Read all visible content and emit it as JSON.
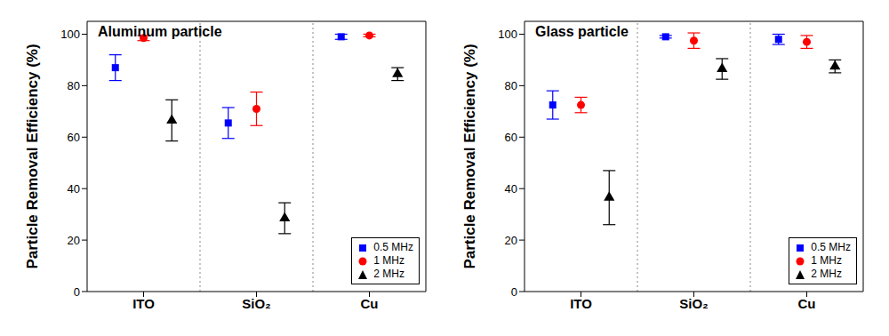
{
  "chart_data": [
    {
      "type": "scatter",
      "title": "Aluminum particle",
      "y_label": "Particle Removal Efficiency (%)",
      "categories": [
        "ITO",
        "SiO₂",
        "Cu"
      ],
      "series": [
        {
          "name": "0.5 MHz",
          "color": "#0000ff",
          "marker": "square",
          "values": [
            87,
            65.5,
            99
          ],
          "errors": [
            5,
            6,
            1
          ]
        },
        {
          "name": "1 MHz",
          "color": "#ff0000",
          "marker": "circle",
          "values": [
            98.5,
            71,
            99.5
          ],
          "errors": [
            1,
            6.5,
            0.5
          ]
        },
        {
          "name": "2 MHz",
          "color": "#000000",
          "marker": "triangle",
          "values": [
            66.5,
            28.5,
            84.5
          ],
          "errors": [
            8,
            6,
            2.5
          ]
        }
      ],
      "ylim": [
        0,
        105
      ],
      "yticks": [
        0,
        20,
        40,
        60,
        80,
        100
      ],
      "legend": "lower right"
    },
    {
      "type": "scatter",
      "title": "Glass particle",
      "y_label": "Particle Removal Efficiency (%)",
      "categories": [
        "ITO",
        "SiO₂",
        "Cu"
      ],
      "series": [
        {
          "name": "0.5 MHz",
          "color": "#0000ff",
          "marker": "square",
          "values": [
            72.5,
            99,
            98
          ],
          "errors": [
            5.5,
            0.5,
            2
          ]
        },
        {
          "name": "1 MHz",
          "color": "#ff0000",
          "marker": "circle",
          "values": [
            72.5,
            97.5,
            97
          ],
          "errors": [
            3,
            3,
            2.5
          ]
        },
        {
          "name": "2 MHz",
          "color": "#000000",
          "marker": "triangle",
          "values": [
            36.5,
            86.5,
            87.5
          ],
          "errors": [
            10.5,
            4,
            2.5
          ]
        }
      ],
      "ylim": [
        0,
        105
      ],
      "yticks": [
        0,
        20,
        40,
        60,
        80,
        100
      ],
      "legend": "lower right"
    }
  ]
}
